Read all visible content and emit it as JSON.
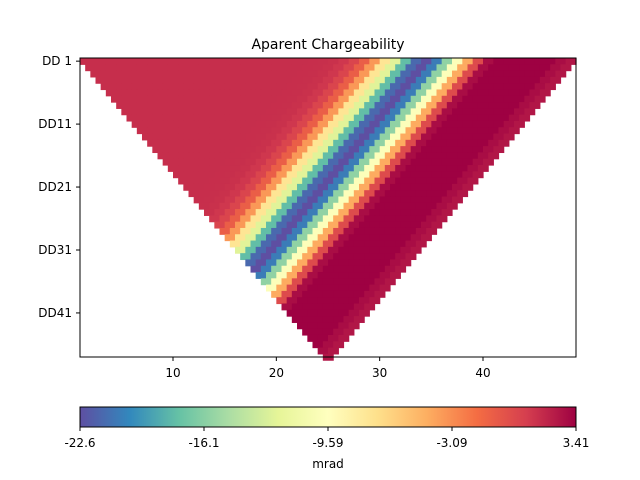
{
  "chart_data": {
    "type": "heatmap",
    "title": "Aparent Chargeability",
    "xlabel": "",
    "ylabel": "",
    "x_range": [
      1,
      49
    ],
    "x_ticks": [
      10,
      20,
      30,
      40
    ],
    "y_ticks": [
      "DD 1",
      "DD11",
      "DD21",
      "DD31",
      "DD41"
    ],
    "n_levels": 48,
    "colormap": "Spectral_r",
    "colorbar": {
      "label": "mrad",
      "min": -22.6,
      "max": 3.41,
      "ticks": [
        "-22.6",
        "-16.1",
        "-9.59",
        "-3.09",
        "3.41"
      ]
    },
    "pseudosection": {
      "apex_x": 25,
      "background_value": 1.5,
      "features": [
        {
          "kind": "band",
          "offset": 14.5,
          "width": 2.8,
          "value": -24.0
        },
        {
          "kind": "band",
          "offset": 8.0,
          "width": 4.5,
          "value": 5.5
        }
      ]
    }
  }
}
